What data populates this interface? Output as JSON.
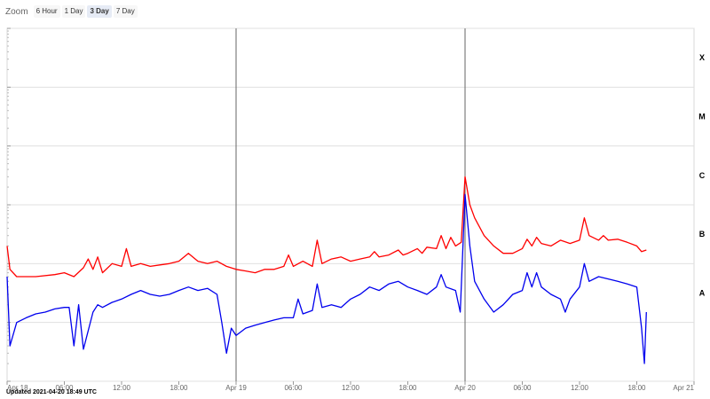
{
  "zoom": {
    "label": "Zoom",
    "options": [
      "6 Hour",
      "1 Day",
      "3 Day",
      "7 Day"
    ],
    "selected": "3 Day"
  },
  "updated_text": "Updated 2021-04-20 18:49 UTC",
  "colors": {
    "red_series": "#ff0000",
    "blue_series": "#0000ee",
    "grid": "#e0e0e0",
    "day_line": "#666666"
  },
  "chart_data": {
    "type": "line",
    "y_scale": "log",
    "ylim": [
      1e-09,
      0.001
    ],
    "xlim_hours": [
      0,
      72
    ],
    "x_ticks": [
      {
        "h": 0,
        "label": "Apr 18"
      },
      {
        "h": 6,
        "label": "06:00"
      },
      {
        "h": 12,
        "label": "12:00"
      },
      {
        "h": 18,
        "label": "18:00"
      },
      {
        "h": 24,
        "label": "Apr 19"
      },
      {
        "h": 30,
        "label": "06:00"
      },
      {
        "h": 36,
        "label": "12:00"
      },
      {
        "h": 42,
        "label": "18:00"
      },
      {
        "h": 48,
        "label": "Apr 20"
      },
      {
        "h": 54,
        "label": "06:00"
      },
      {
        "h": 60,
        "label": "12:00"
      },
      {
        "h": 66,
        "label": "18:00"
      },
      {
        "h": 72,
        "label": "Apr 21"
      }
    ],
    "day_lines_hours": [
      24,
      48
    ],
    "flare_classes": [
      {
        "label": "X",
        "flux": 0.0001
      },
      {
        "label": "M",
        "flux": 1e-05
      },
      {
        "label": "C",
        "flux": 1e-06
      },
      {
        "label": "B",
        "flux": 1e-07
      },
      {
        "label": "A",
        "flux": 1e-08
      }
    ],
    "series": [
      {
        "color": "red",
        "points": [
          [
            0.0,
            2e-07
          ],
          [
            0.3,
            8e-08
          ],
          [
            1,
            6e-08
          ],
          [
            3,
            6e-08
          ],
          [
            5,
            6.5e-08
          ],
          [
            6,
            7e-08
          ],
          [
            7,
            6e-08
          ],
          [
            8,
            8.5e-08
          ],
          [
            8.5,
            1.2e-07
          ],
          [
            9,
            8e-08
          ],
          [
            9.5,
            1.3e-07
          ],
          [
            10,
            7e-08
          ],
          [
            11,
            1e-07
          ],
          [
            12,
            9e-08
          ],
          [
            12.5,
            1.8e-07
          ],
          [
            13,
            9e-08
          ],
          [
            14,
            1e-07
          ],
          [
            15,
            9e-08
          ],
          [
            16,
            9.5e-08
          ],
          [
            17,
            1e-07
          ],
          [
            18,
            1.1e-07
          ],
          [
            19,
            1.5e-07
          ],
          [
            20,
            1.1e-07
          ],
          [
            21,
            1e-07
          ],
          [
            22,
            1.1e-07
          ],
          [
            23,
            9e-08
          ],
          [
            24,
            8e-08
          ],
          [
            25,
            7.5e-08
          ],
          [
            26,
            7e-08
          ],
          [
            27,
            8e-08
          ],
          [
            28,
            8e-08
          ],
          [
            29,
            9e-08
          ],
          [
            29.5,
            1.4e-07
          ],
          [
            30,
            9e-08
          ],
          [
            31,
            1.1e-07
          ],
          [
            32,
            9e-08
          ],
          [
            32.5,
            2.5e-07
          ],
          [
            33,
            1e-07
          ],
          [
            34,
            1.2e-07
          ],
          [
            35,
            1.3e-07
          ],
          [
            36,
            1.1e-07
          ],
          [
            37,
            1.2e-07
          ],
          [
            38,
            1.3e-07
          ],
          [
            38.5,
            1.6e-07
          ],
          [
            39,
            1.3e-07
          ],
          [
            40,
            1.4e-07
          ],
          [
            41,
            1.7e-07
          ],
          [
            41.5,
            1.4e-07
          ],
          [
            42,
            1.5e-07
          ],
          [
            43,
            1.8e-07
          ],
          [
            43.5,
            1.5e-07
          ],
          [
            44,
            1.9e-07
          ],
          [
            45,
            1.8e-07
          ],
          [
            45.5,
            3e-07
          ],
          [
            46,
            1.8e-07
          ],
          [
            46.5,
            2.8e-07
          ],
          [
            47,
            2e-07
          ],
          [
            47.6,
            2.3e-07
          ],
          [
            48.0,
            3e-06
          ],
          [
            48.5,
            1e-06
          ],
          [
            49,
            6e-07
          ],
          [
            50,
            3e-07
          ],
          [
            51,
            2e-07
          ],
          [
            52,
            1.5e-07
          ],
          [
            53,
            1.5e-07
          ],
          [
            54,
            1.8e-07
          ],
          [
            54.5,
            2.6e-07
          ],
          [
            55,
            2e-07
          ],
          [
            55.5,
            2.8e-07
          ],
          [
            56,
            2.2e-07
          ],
          [
            57,
            2e-07
          ],
          [
            58,
            2.5e-07
          ],
          [
            59,
            2.2e-07
          ],
          [
            60,
            2.5e-07
          ],
          [
            60.5,
            6e-07
          ],
          [
            61,
            3e-07
          ],
          [
            62,
            2.5e-07
          ],
          [
            62.5,
            3e-07
          ],
          [
            63,
            2.5e-07
          ],
          [
            64,
            2.6e-07
          ],
          [
            65,
            2.3e-07
          ],
          [
            66,
            2e-07
          ],
          [
            66.5,
            1.6e-07
          ],
          [
            67,
            1.7e-07
          ]
        ]
      },
      {
        "color": "blue",
        "points": [
          [
            0.0,
            6e-08
          ],
          [
            0.3,
            4e-09
          ],
          [
            1,
            1e-08
          ],
          [
            2,
            1.2e-08
          ],
          [
            3,
            1.4e-08
          ],
          [
            4,
            1.5e-08
          ],
          [
            5,
            1.7e-08
          ],
          [
            6,
            1.8e-08
          ],
          [
            6.5,
            1.8e-08
          ],
          [
            7,
            4e-09
          ],
          [
            7.5,
            2e-08
          ],
          [
            8,
            3.5e-09
          ],
          [
            9,
            1.5e-08
          ],
          [
            9.5,
            2e-08
          ],
          [
            10,
            1.8e-08
          ],
          [
            11,
            2.2e-08
          ],
          [
            12,
            2.5e-08
          ],
          [
            13,
            3e-08
          ],
          [
            14,
            3.5e-08
          ],
          [
            15,
            3e-08
          ],
          [
            16,
            2.8e-08
          ],
          [
            17,
            3e-08
          ],
          [
            18,
            3.5e-08
          ],
          [
            19,
            4e-08
          ],
          [
            20,
            3.5e-08
          ],
          [
            21,
            3.8e-08
          ],
          [
            22,
            3e-08
          ],
          [
            22.5,
            1e-08
          ],
          [
            23,
            3e-09
          ],
          [
            23.5,
            8e-09
          ],
          [
            24,
            6e-09
          ],
          [
            25,
            8e-09
          ],
          [
            26,
            9e-09
          ],
          [
            27,
            1e-08
          ],
          [
            28,
            1.1e-08
          ],
          [
            29,
            1.2e-08
          ],
          [
            30,
            1.2e-08
          ],
          [
            30.5,
            2.5e-08
          ],
          [
            31,
            1.4e-08
          ],
          [
            32,
            1.6e-08
          ],
          [
            32.5,
            4.5e-08
          ],
          [
            33,
            1.8e-08
          ],
          [
            34,
            2e-08
          ],
          [
            35,
            1.8e-08
          ],
          [
            36,
            2.5e-08
          ],
          [
            37,
            3e-08
          ],
          [
            38,
            4e-08
          ],
          [
            39,
            3.5e-08
          ],
          [
            40,
            4.5e-08
          ],
          [
            41,
            5e-08
          ],
          [
            42,
            4e-08
          ],
          [
            43,
            3.5e-08
          ],
          [
            44,
            3e-08
          ],
          [
            45,
            4e-08
          ],
          [
            45.5,
            6.5e-08
          ],
          [
            46,
            4e-08
          ],
          [
            47,
            3.5e-08
          ],
          [
            47.5,
            1.5e-08
          ],
          [
            48.0,
            1.5e-06
          ],
          [
            48.5,
            2e-07
          ],
          [
            49,
            5e-08
          ],
          [
            50,
            2.5e-08
          ],
          [
            51,
            1.5e-08
          ],
          [
            52,
            2e-08
          ],
          [
            53,
            3e-08
          ],
          [
            54,
            3.5e-08
          ],
          [
            54.5,
            7e-08
          ],
          [
            55,
            4e-08
          ],
          [
            55.5,
            7e-08
          ],
          [
            56,
            4e-08
          ],
          [
            57,
            3e-08
          ],
          [
            58,
            2.5e-08
          ],
          [
            58.5,
            1.5e-08
          ],
          [
            59,
            2.5e-08
          ],
          [
            60,
            4e-08
          ],
          [
            60.5,
            1e-07
          ],
          [
            61,
            5e-08
          ],
          [
            62,
            6e-08
          ],
          [
            63,
            5.5e-08
          ],
          [
            64,
            5e-08
          ],
          [
            65,
            4.5e-08
          ],
          [
            66,
            4e-08
          ],
          [
            66.5,
            8e-09
          ],
          [
            66.8,
            2e-09
          ],
          [
            67,
            1.5e-08
          ]
        ]
      }
    ]
  }
}
